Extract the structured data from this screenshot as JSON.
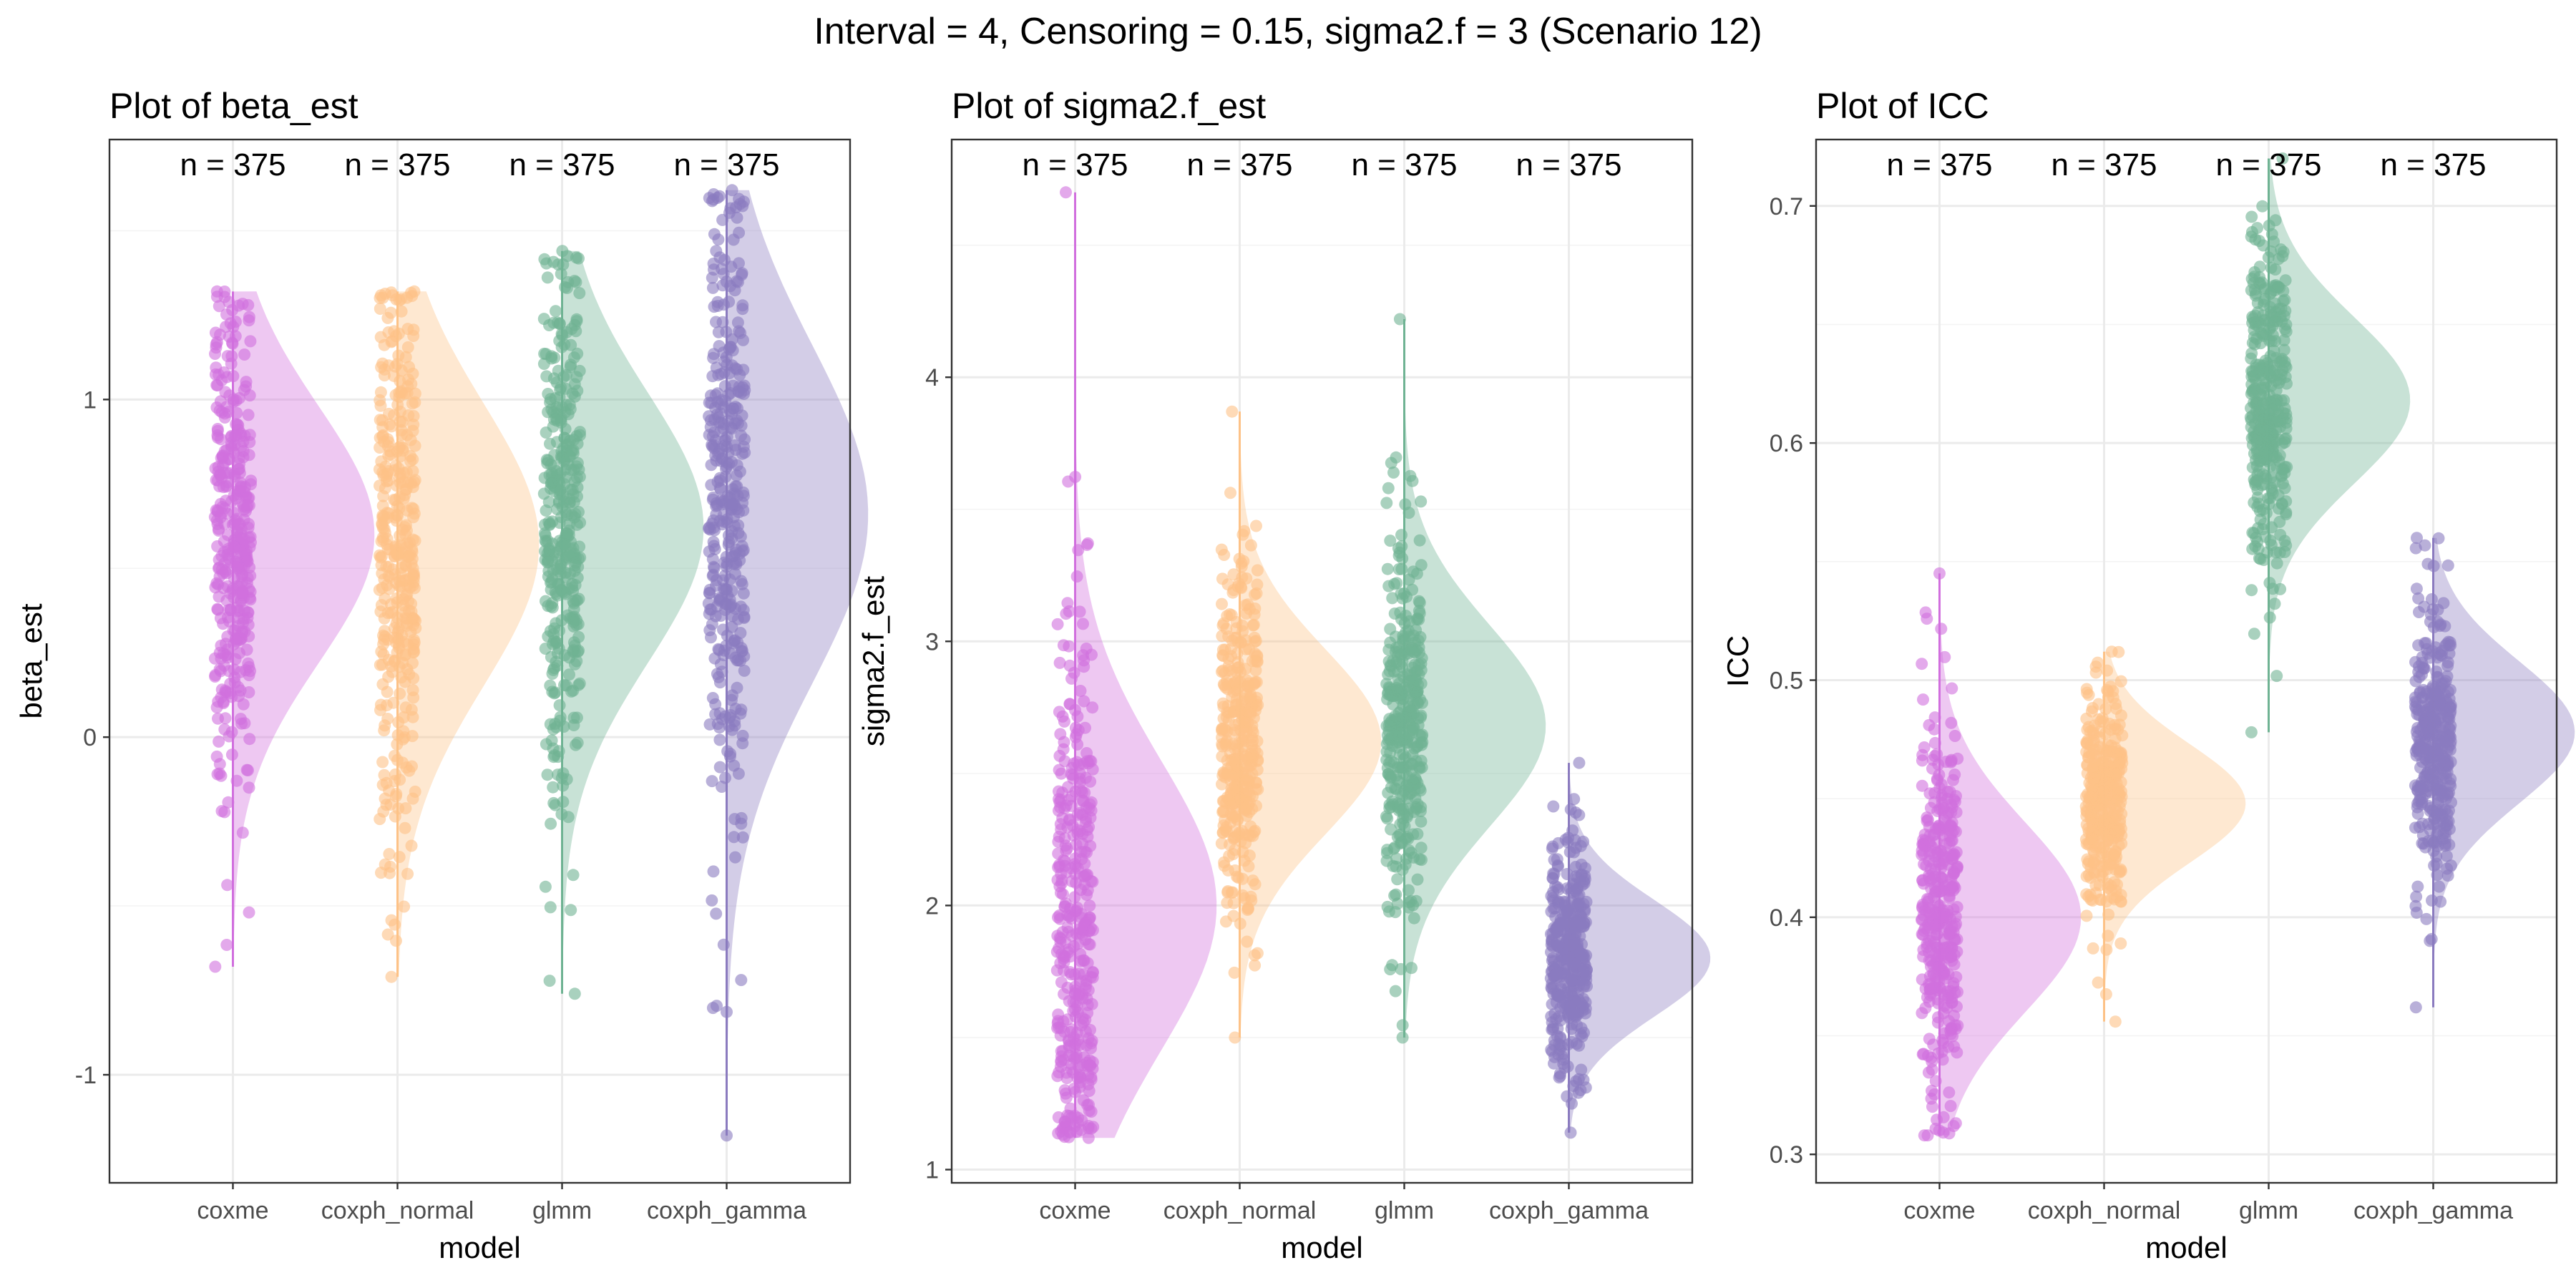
{
  "suptitle": "Interval = 4, Censoring = 0.15, sigma2.f = 3 (Scenario 12)",
  "colors": {
    "coxme": "#d16fde",
    "coxph_normal": "#fdc287",
    "glmm": "#6fb393",
    "coxph_gamma": "#8b7bbf"
  },
  "chart_data": [
    {
      "type": "raincloud",
      "title": "Plot of beta_est",
      "xlabel": "model",
      "ylabel": "beta_est",
      "categories": [
        "coxme",
        "coxph_normal",
        "glmm",
        "coxph_gamma"
      ],
      "ylim": [
        -1.32,
        1.77
      ],
      "yticks": [
        -1,
        0,
        1
      ],
      "ytick_labels": [
        "-1",
        "0",
        "1"
      ],
      "n_labels": [
        "n = 375",
        "n = 375",
        "n = 375",
        "n = 375"
      ],
      "series": [
        {
          "name": "coxme",
          "n": 375,
          "mean": 0.6,
          "sd": 0.38,
          "min": -0.68,
          "max": 1.32
        },
        {
          "name": "coxph_normal",
          "n": 375,
          "mean": 0.57,
          "sd": 0.42,
          "min": -0.71,
          "max": 1.32
        },
        {
          "name": "glmm",
          "n": 375,
          "mean": 0.62,
          "sd": 0.4,
          "min": -0.76,
          "max": 1.44
        },
        {
          "name": "coxph_gamma",
          "n": 375,
          "mean": 0.66,
          "sd": 0.5,
          "min": -1.18,
          "max": 1.62
        }
      ]
    },
    {
      "type": "raincloud",
      "title": "Plot of sigma2.f_est",
      "xlabel": "model",
      "ylabel": "sigma2.f_est",
      "categories": [
        "coxme",
        "coxph_normal",
        "glmm",
        "coxph_gamma"
      ],
      "ylim": [
        0.95,
        4.9
      ],
      "yticks": [
        1,
        2,
        3,
        4
      ],
      "ytick_labels": [
        "1",
        "2",
        "3",
        "4"
      ],
      "n_labels": [
        "n = 375",
        "n = 375",
        "n = 375",
        "n = 375"
      ],
      "series": [
        {
          "name": "coxme",
          "n": 375,
          "mean": 2.0,
          "sd": 0.55,
          "min": 1.12,
          "max": 4.7
        },
        {
          "name": "coxph_normal",
          "n": 375,
          "mean": 2.62,
          "sd": 0.35,
          "min": 1.5,
          "max": 3.87
        },
        {
          "name": "glmm",
          "n": 375,
          "mean": 2.68,
          "sd": 0.38,
          "min": 1.5,
          "max": 4.22
        },
        {
          "name": "coxph_gamma",
          "n": 375,
          "mean": 1.8,
          "sd": 0.22,
          "min": 1.14,
          "max": 2.54
        }
      ]
    },
    {
      "type": "raincloud",
      "title": "Plot of ICC",
      "xlabel": "model",
      "ylabel": "ICC",
      "categories": [
        "coxme",
        "coxph_normal",
        "glmm",
        "coxph_gamma"
      ],
      "ylim": [
        0.288,
        0.728
      ],
      "yticks": [
        0.3,
        0.4,
        0.5,
        0.6,
        0.7
      ],
      "ytick_labels": [
        "0.3",
        "0.4",
        "0.5",
        "0.6",
        "0.7"
      ],
      "n_labels": [
        "n = 375",
        "n = 375",
        "n = 375",
        "n = 375"
      ],
      "series": [
        {
          "name": "coxme",
          "n": 375,
          "mean": 0.4,
          "sd": 0.04,
          "min": 0.308,
          "max": 0.545
        },
        {
          "name": "coxph_normal",
          "n": 375,
          "mean": 0.448,
          "sd": 0.025,
          "min": 0.356,
          "max": 0.512
        },
        {
          "name": "glmm",
          "n": 375,
          "mean": 0.618,
          "sd": 0.035,
          "min": 0.478,
          "max": 0.72
        },
        {
          "name": "coxph_gamma",
          "n": 375,
          "mean": 0.478,
          "sd": 0.03,
          "min": 0.362,
          "max": 0.56
        }
      ]
    }
  ]
}
